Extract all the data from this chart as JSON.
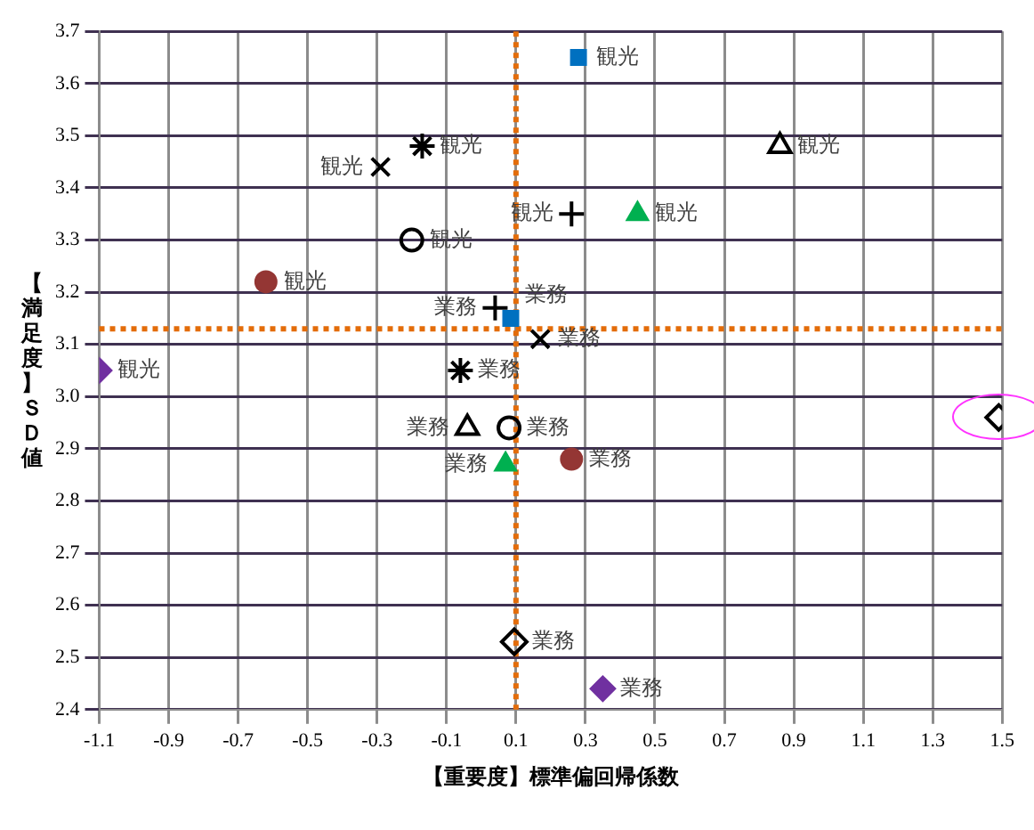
{
  "chart_data": {
    "type": "scatter",
    "xlabel": "【重要度】標準偏回帰係数",
    "ylabel": "【満足度】ＳＤ値",
    "series": [
      {
        "marker": "square",
        "color": "#0070c0",
        "x": [
          0.28,
          0.085
        ],
        "values": [
          3.65,
          3.15
        ]
      },
      {
        "marker": "triangle",
        "color": "#000000",
        "x": [
          0.86,
          -0.04
        ],
        "values": [
          3.48,
          2.94
        ]
      },
      {
        "marker": "cross",
        "color": "#000000",
        "x": [
          -0.17,
          -0.06
        ],
        "values": [
          3.48,
          3.05
        ]
      },
      {
        "marker": "x",
        "color": "#000000",
        "x": [
          -0.29,
          0.17
        ],
        "values": [
          3.44,
          3.11
        ]
      },
      {
        "marker": "plus",
        "color": "#000000",
        "x": [
          0.26,
          0.04
        ],
        "values": [
          3.35,
          3.17
        ]
      },
      {
        "marker": "triangle",
        "color": "#00b050",
        "x": [
          0.45,
          0.07
        ],
        "values": [
          3.35,
          2.87
        ]
      },
      {
        "marker": "circle",
        "color": "#000000",
        "x": [
          -0.2,
          0.08
        ],
        "values": [
          3.3,
          2.94
        ]
      },
      {
        "marker": "circle",
        "color": "#943634",
        "x": [
          -0.62,
          0.26
        ],
        "values": [
          3.22,
          2.88
        ]
      },
      {
        "marker": "diamond",
        "color": "#7030a0",
        "x": [
          -1.1,
          0.35
        ],
        "values": [
          3.05,
          2.44
        ]
      },
      {
        "marker": "diamond",
        "color": "#000000",
        "x": [
          1.49,
          0.095
        ],
        "values": [
          2.96,
          2.53
        ]
      }
    ],
    "annotations": [
      {
        "text": "観光",
        "x": 0.28,
        "y": 3.65
      },
      {
        "text": "観光",
        "x": 0.86,
        "y": 3.48
      },
      {
        "text": "観光",
        "x": -0.17,
        "y": 3.48
      },
      {
        "text": "観光",
        "x": -0.29,
        "y": 3.44
      },
      {
        "text": "観光",
        "x": 0.26,
        "y": 3.35
      },
      {
        "text": "観光",
        "x": 0.45,
        "y": 3.35
      },
      {
        "text": "観光",
        "x": -0.2,
        "y": 3.3
      },
      {
        "text": "観光",
        "x": -0.62,
        "y": 3.22
      },
      {
        "text": "観光",
        "x": -1.1,
        "y": 3.05
      },
      {
        "text": "業務",
        "x": 0.085,
        "y": 3.15
      },
      {
        "text": "業務",
        "x": 0.04,
        "y": 3.17
      },
      {
        "text": "業務",
        "x": 0.17,
        "y": 3.11
      },
      {
        "text": "業務",
        "x": -0.06,
        "y": 3.05
      },
      {
        "text": "業務",
        "x": -0.04,
        "y": 2.94
      },
      {
        "text": "業務",
        "x": 0.08,
        "y": 2.94
      },
      {
        "text": "業務",
        "x": 0.26,
        "y": 2.88
      },
      {
        "text": "業務",
        "x": 0.07,
        "y": 2.87
      },
      {
        "text": "業務",
        "x": 0.095,
        "y": 2.53
      },
      {
        "text": "業務",
        "x": 0.35,
        "y": 2.44
      }
    ],
    "ref_lines": [
      {
        "axis": "x",
        "value": 0.1,
        "color": "#e36c09",
        "line_style": "dotted"
      },
      {
        "axis": "y",
        "value": 3.13,
        "color": "#e36c09",
        "line_style": "dotted"
      }
    ],
    "xlim": [
      -1.1,
      1.5
    ],
    "xticks": [
      -1.1,
      -0.9,
      -0.7,
      -0.5,
      -0.3,
      -0.1,
      0.1,
      0.3,
      0.5,
      0.7,
      0.9,
      1.1,
      1.3,
      1.5
    ],
    "ylim": [
      2.4,
      3.7
    ],
    "yticks": [
      2.4,
      2.5,
      2.6,
      2.7,
      2.8,
      2.9,
      {
        "value": 3,
        "label": "3.0"
      },
      3.1,
      3.2,
      3.3,
      3.4,
      3.5,
      3.6,
      3.7
    ],
    "grid": true,
    "legend": false
  }
}
